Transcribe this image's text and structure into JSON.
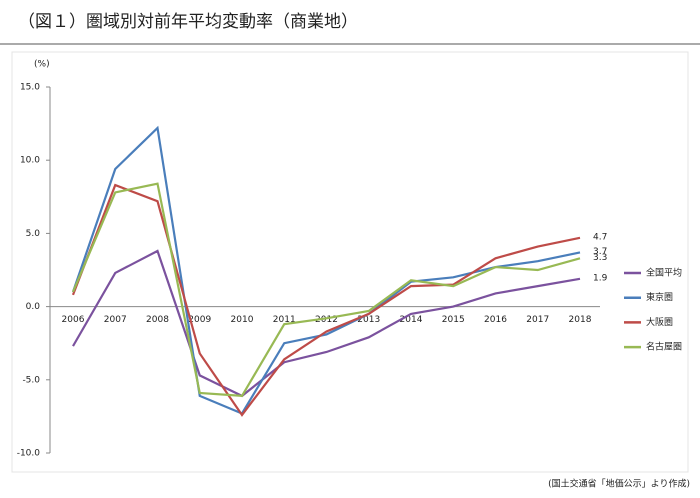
{
  "chart_data": {
    "type": "line",
    "title": "（図１）圏域別対前年平均変動率（商業地）",
    "y_label": "(%)",
    "source": "(国土交通省「地価公示」より作成)",
    "categories": [
      "2006",
      "2007",
      "2008",
      "2009",
      "2010",
      "2011",
      "2012",
      "2013",
      "2014",
      "2015",
      "2016",
      "2017",
      "2018"
    ],
    "series": [
      {
        "name": "全国平均",
        "color": "#7b529e",
        "values": [
          -2.7,
          2.3,
          3.8,
          -4.7,
          -6.1,
          -3.8,
          -3.1,
          -2.1,
          -0.5,
          0.0,
          0.9,
          1.4,
          1.9
        ]
      },
      {
        "name": "東京圏",
        "color": "#4a7ebb",
        "values": [
          1.0,
          9.4,
          12.2,
          -6.1,
          -7.3,
          -2.5,
          -1.9,
          -0.5,
          1.7,
          2.0,
          2.7,
          3.1,
          3.7
        ]
      },
      {
        "name": "大阪圏",
        "color": "#be4b48",
        "values": [
          0.8,
          8.3,
          7.2,
          -3.2,
          -7.4,
          -3.6,
          -1.7,
          -0.5,
          1.4,
          1.5,
          3.3,
          4.1,
          4.7
        ]
      },
      {
        "name": "名古屋圏",
        "color": "#98b954",
        "values": [
          1.0,
          7.8,
          8.4,
          -5.9,
          -6.1,
          -1.2,
          -0.8,
          -0.3,
          1.8,
          1.4,
          2.7,
          2.5,
          3.3
        ]
      }
    ],
    "ylim": [
      -10,
      15
    ],
    "yticks": [
      {
        "value": 15,
        "label": "15.0"
      },
      {
        "value": 10,
        "label": "10.0"
      },
      {
        "value": 5,
        "label": "5.0"
      },
      {
        "value": 0,
        "label": "0.0"
      },
      {
        "value": -5,
        "label": "-5.0"
      },
      {
        "value": -10,
        "label": "-10.0"
      }
    ],
    "grid": false,
    "legend": "right",
    "end_labels": true
  }
}
